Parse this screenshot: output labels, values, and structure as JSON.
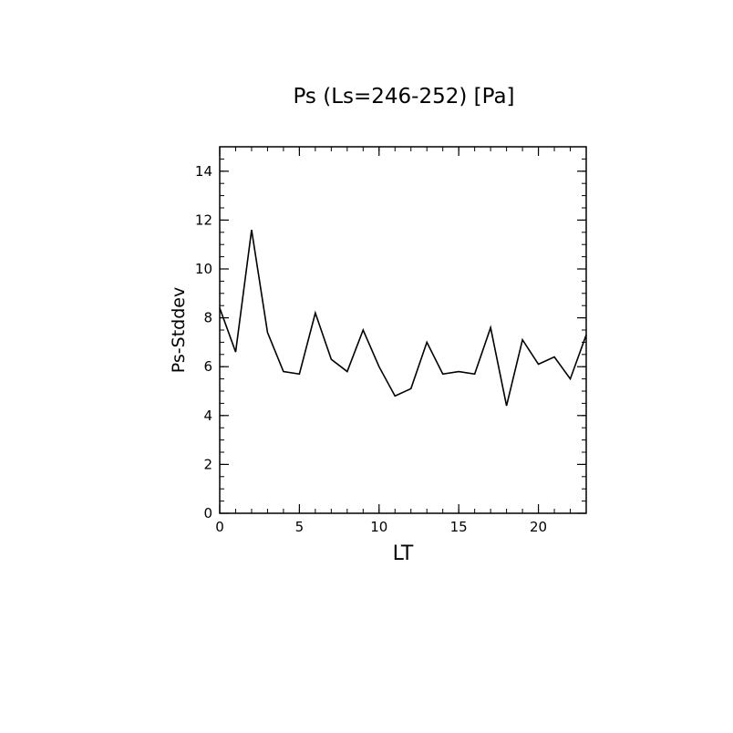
{
  "chart_data": {
    "type": "line",
    "title": "Ps (Ls=246-252) [Pa]",
    "xlabel": "LT",
    "ylabel": "Ps-Stddev",
    "xlim": [
      0,
      23
    ],
    "ylim": [
      0,
      15
    ],
    "xticks": [
      0,
      5,
      10,
      15,
      20
    ],
    "yticks": [
      0,
      2,
      4,
      6,
      8,
      10,
      12,
      14
    ],
    "grid": false,
    "x": [
      0,
      1,
      2,
      3,
      4,
      5,
      6,
      7,
      8,
      9,
      10,
      11,
      12,
      13,
      14,
      15,
      16,
      17,
      18,
      19,
      20,
      21,
      22,
      23
    ],
    "series": [
      {
        "values": [
          8.4,
          6.6,
          11.6,
          7.4,
          5.8,
          5.7,
          8.2,
          6.3,
          5.8,
          7.5,
          6.0,
          4.8,
          5.1,
          7.0,
          5.7,
          5.8,
          5.7,
          7.6,
          4.4,
          7.1,
          6.1,
          6.4,
          5.5,
          7.3
        ],
        "color": "#000000"
      }
    ]
  }
}
